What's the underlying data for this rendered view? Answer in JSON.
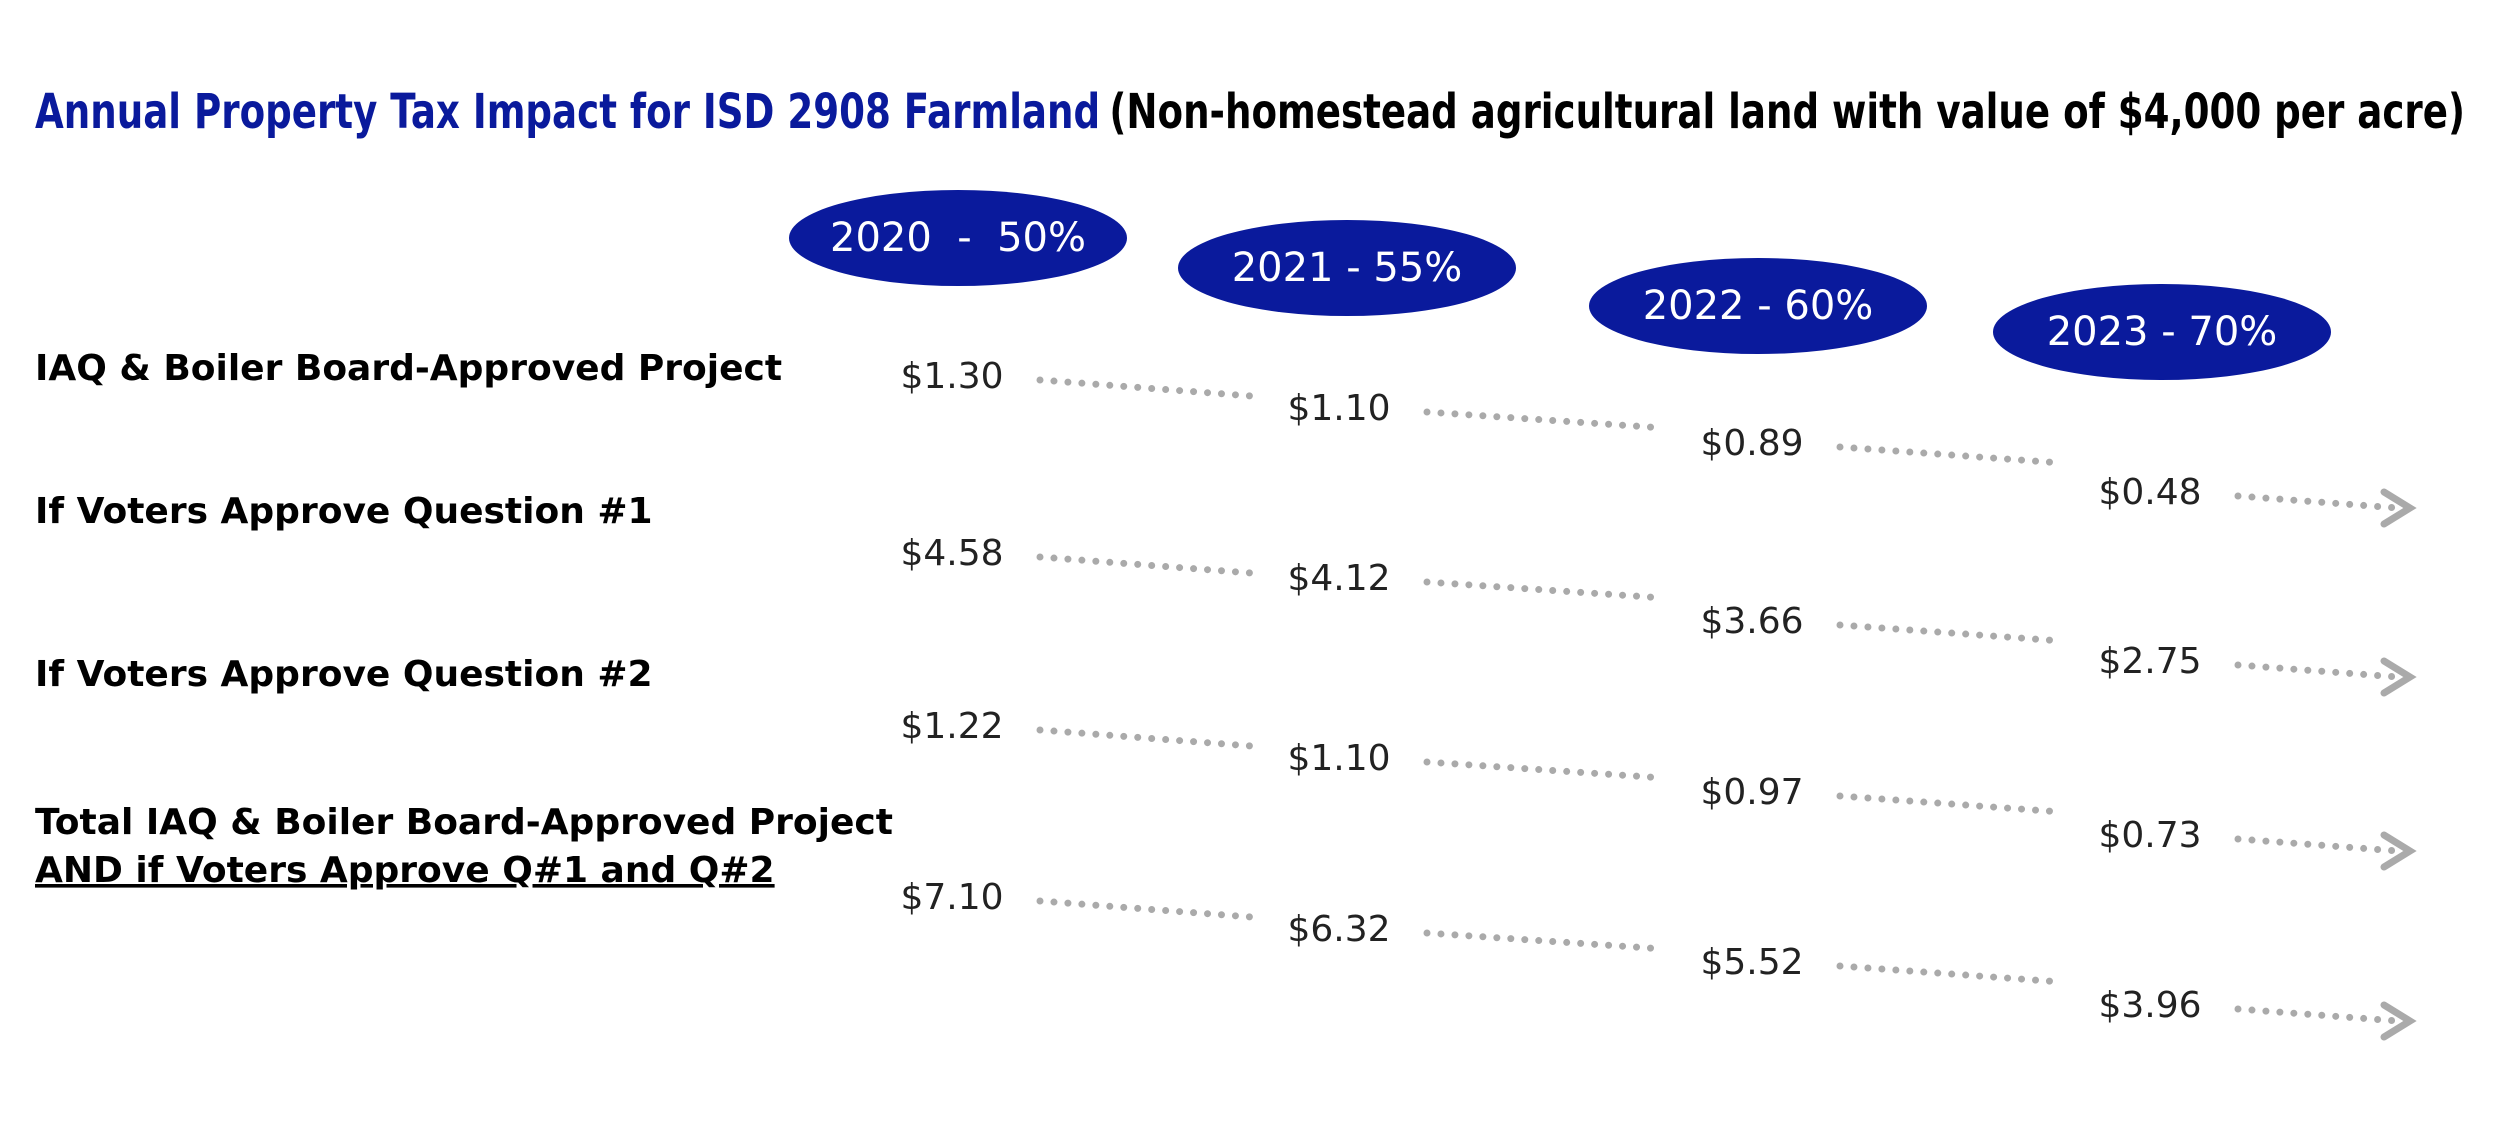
{
  "title": {
    "highlight": "Annual Property Tax Impact for ISD 2908 Farmland",
    "rest": "(Non-homestead agricultural land with value of $4,000 per acre)"
  },
  "years": [
    "2020  -  50%",
    "2021 - 55%",
    "2022 - 60%",
    "2023 - 70%"
  ],
  "rows": [
    {
      "label": [
        "IAQ & Boiler Board-Approved Project"
      ],
      "values": [
        "$1.30",
        "$1.10",
        "$0.89",
        "$0.48"
      ]
    },
    {
      "label": [
        "If Voters Approve Question #1"
      ],
      "values": [
        "$4.58",
        "$4.12",
        "$3.66",
        "$2.75"
      ]
    },
    {
      "label": [
        "If Voters Approve Question #2"
      ],
      "values": [
        "$1.22",
        "$1.10",
        "$0.97",
        "$0.73"
      ]
    },
    {
      "label": [
        "Total IAQ & Boiler Board-Approved Project",
        "AND if Voters Approve Q#1 and Q#2"
      ],
      "values": [
        "$7.10",
        "$6.32",
        "$5.52",
        "$3.96"
      ]
    }
  ]
}
